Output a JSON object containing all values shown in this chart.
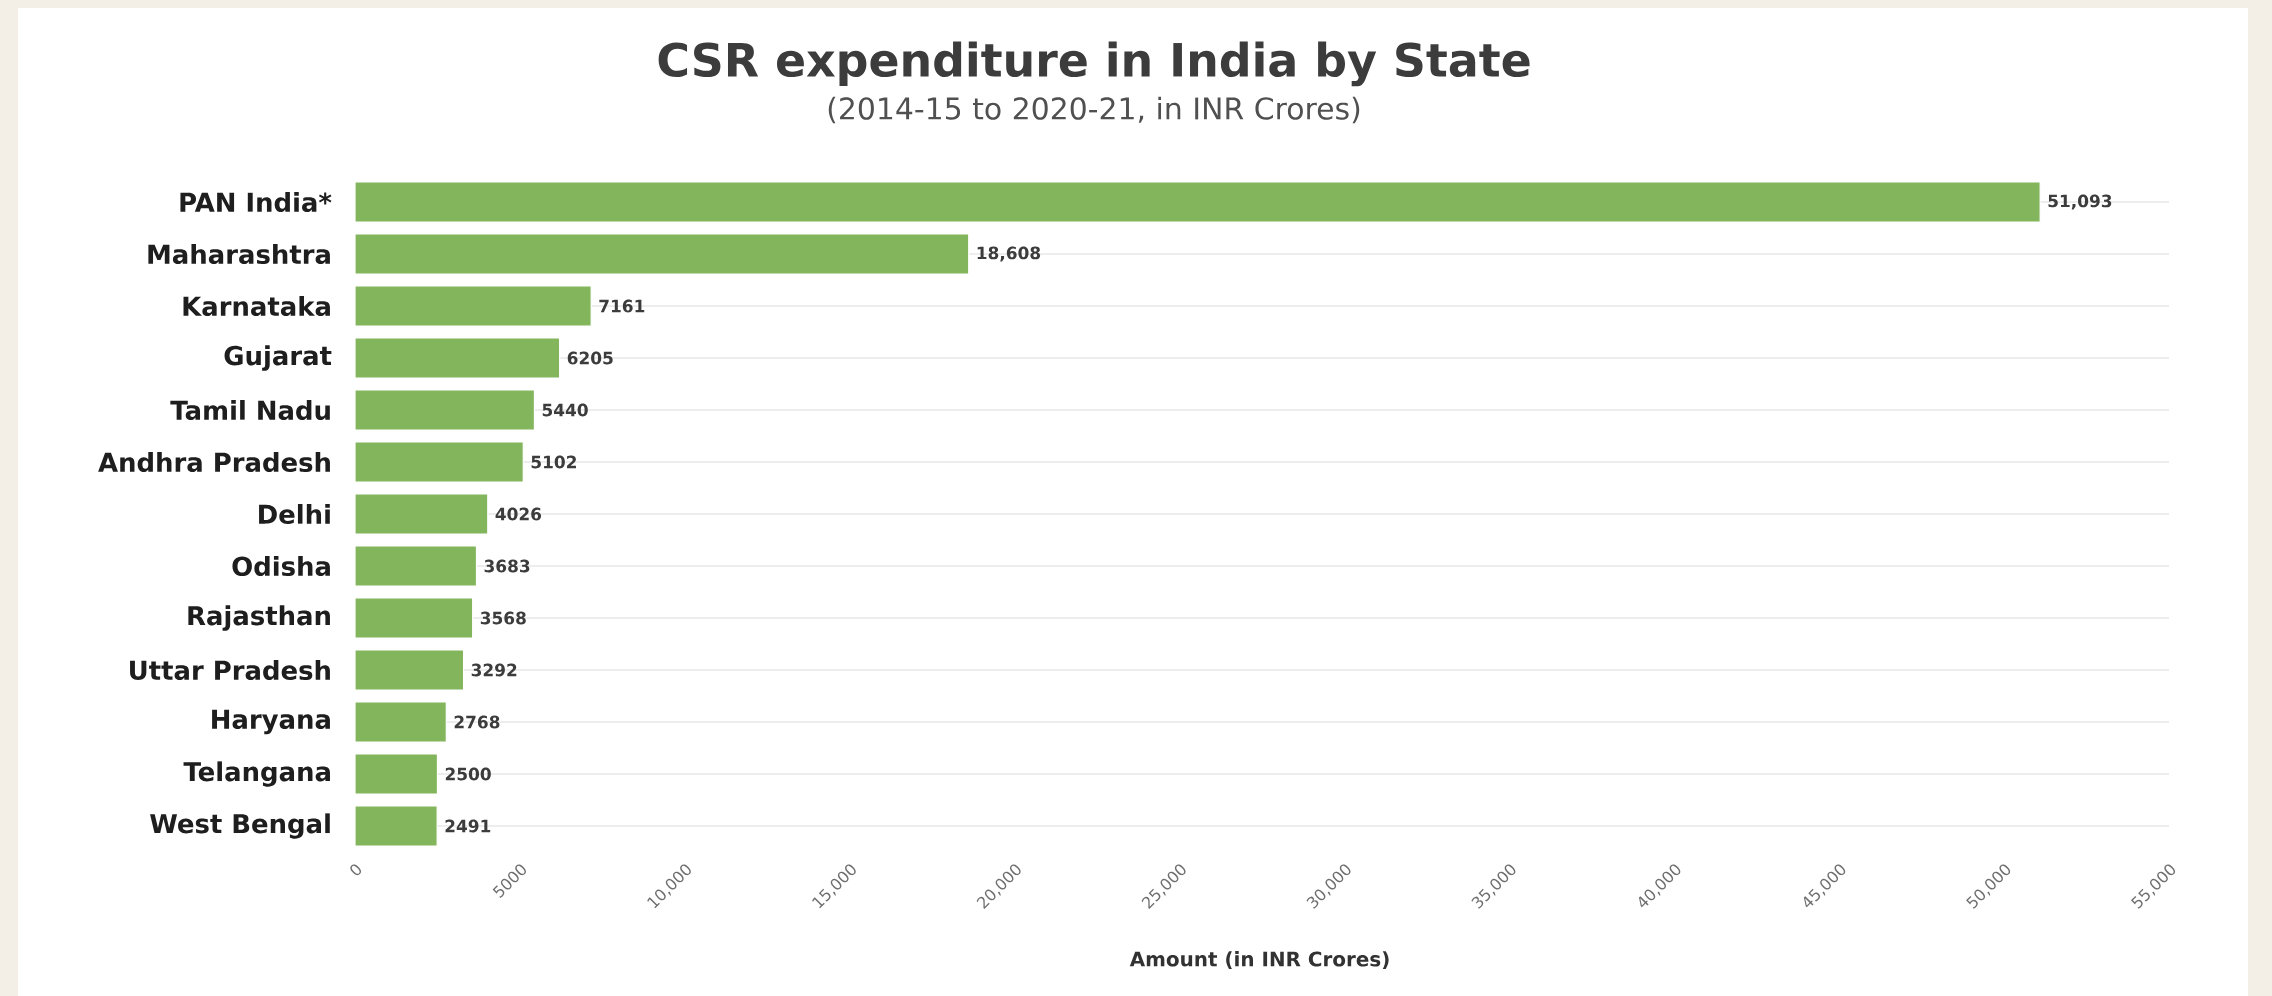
{
  "chart_data": {
    "type": "bar",
    "orientation": "horizontal",
    "title": "CSR expenditure in India by State",
    "subtitle": "(2014-15 to 2020-21, in INR Crores)",
    "xlabel": "Amount (in INR Crores)",
    "categories": [
      "PAN India*",
      "Maharashtra",
      "Karnataka",
      "Gujarat",
      "Tamil Nadu",
      "Andhra Pradesh",
      "Delhi",
      "Odisha",
      "Rajasthan",
      "Uttar Pradesh",
      "Haryana",
      "Telangana",
      "West Bengal"
    ],
    "values": [
      51093,
      18608,
      7161,
      6205,
      5440,
      5102,
      4026,
      3683,
      3568,
      3292,
      2768,
      2500,
      2491
    ],
    "value_labels": [
      "51,093",
      "18,608",
      "7161",
      "6205",
      "5440",
      "5102",
      "4026",
      "3683",
      "3568",
      "3292",
      "2768",
      "2500",
      "2491"
    ],
    "color": "#82b55c",
    "xlim": [
      0,
      55000
    ],
    "xticks": [
      0,
      5000,
      {
        "value": 10000,
        "label": "10,000"
      },
      {
        "value": 15000,
        "label": "15,000"
      },
      {
        "value": 20000,
        "label": "20,000"
      },
      {
        "value": 25000,
        "label": "25,000"
      },
      {
        "value": 30000,
        "label": "30,000"
      },
      {
        "value": 35000,
        "label": "35,000"
      },
      {
        "value": 40000,
        "label": "40,000"
      },
      {
        "value": 45000,
        "label": "45,000"
      },
      {
        "value": 50000,
        "label": "50,000"
      },
      {
        "value": 55000,
        "label": "55,000"
      }
    ],
    "grid": "y"
  }
}
